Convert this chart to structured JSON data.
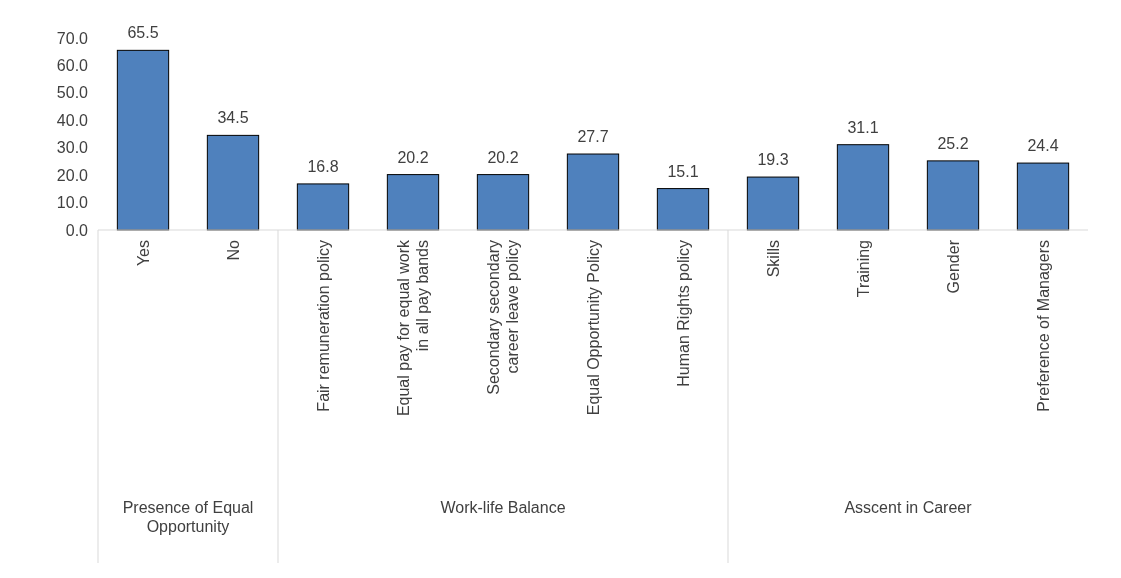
{
  "chart_data": {
    "type": "bar",
    "categories": [
      "Yes",
      "No",
      "Fair remuneration policy",
      "Equal pay for equal work in all pay bands",
      "Secondary secondary career leave policy",
      "Equal Opportunity Policy",
      "Human Rights policy",
      "Skills",
      "Training",
      "Gender",
      "Preference of Managers"
    ],
    "values": [
      65.5,
      34.5,
      16.8,
      20.2,
      20.2,
      27.7,
      15.1,
      19.3,
      31.1,
      25.2,
      24.4
    ],
    "color": "#4f81bd",
    "ylim": [
      0,
      70
    ],
    "yticks": [
      {
        "value": 0,
        "label": "0.0"
      },
      {
        "value": 10,
        "label": "10.0"
      },
      {
        "value": 20,
        "label": "20.0"
      },
      {
        "value": 30,
        "label": "30.0"
      },
      {
        "value": 40,
        "label": "40.0"
      },
      {
        "value": 50,
        "label": "50.0"
      },
      {
        "value": 60,
        "label": "60.0"
      },
      {
        "value": 70,
        "label": "70.0"
      }
    ],
    "data_labels": true,
    "grid": false,
    "annotations": [
      "Presence of Equal Opportunity",
      "Work-life Balance",
      "Asscent in Career"
    ]
  }
}
